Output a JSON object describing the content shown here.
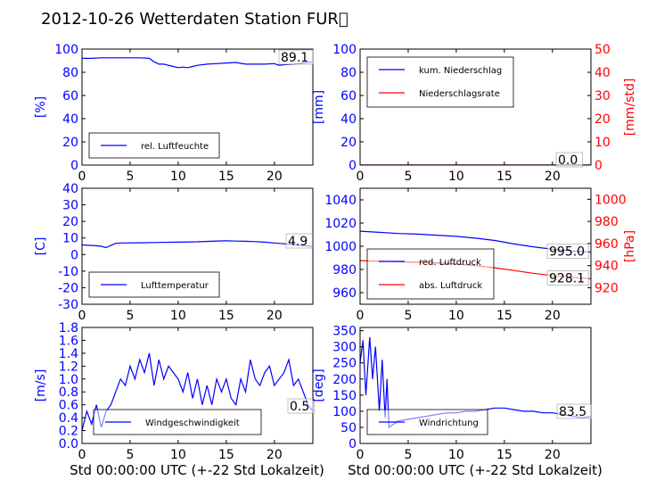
{
  "title": "2012-10-26 Wetterdaten Station FUR\u0000",
  "colors": {
    "blue": "#0000ff",
    "red": "#ff0000",
    "lightblue": "#8888ff"
  },
  "xlabel": "Std 00:00:00 UTC (+-22 Std Lokalzeit)",
  "chart_data": [
    {
      "id": "humidity",
      "type": "line",
      "xlim": [
        0,
        24
      ],
      "ylim": [
        0,
        100
      ],
      "xticks": [
        0,
        5,
        10,
        15,
        20
      ],
      "yticks": [
        0,
        20,
        40,
        60,
        80,
        100
      ],
      "ylabel": "[%]",
      "legend_loc": "lower-left",
      "value_label": "89.1",
      "series": [
        {
          "name": "rel. Luftfeuchte",
          "color": "#0000ff",
          "x": [
            0,
            1,
            2,
            3,
            4,
            5,
            6,
            7,
            7.5,
            8,
            8.5,
            9,
            9.5,
            10,
            10.5,
            11,
            11.5,
            12,
            13,
            14,
            15,
            16,
            17,
            18,
            19,
            20,
            20.5,
            21,
            22,
            23,
            24
          ],
          "y": [
            92,
            92,
            92.5,
            92.5,
            92.5,
            92.5,
            92.5,
            92,
            89,
            87,
            87,
            86,
            85,
            84,
            84.5,
            84,
            85,
            86,
            87,
            87.5,
            88,
            88.5,
            87,
            87,
            87,
            87.5,
            86,
            86.5,
            87,
            88,
            89
          ]
        }
      ]
    },
    {
      "id": "precip",
      "type": "line",
      "xlim": [
        0,
        24
      ],
      "ylim": [
        0,
        100
      ],
      "ylim_right": [
        0,
        50
      ],
      "xticks": [
        0,
        5,
        10,
        15,
        20
      ],
      "yticks": [
        0,
        20,
        40,
        60,
        80,
        100
      ],
      "yticks_right": [
        0,
        10,
        20,
        30,
        40,
        50
      ],
      "ylabel": "[mm]",
      "ylabel_right": "[mm/std]",
      "legend_loc": "upper-left",
      "value_label": "0.0",
      "series": [
        {
          "name": "kum. Niederschlag",
          "color": "#0000ff",
          "axis": "left",
          "x": [
            0,
            24
          ],
          "y": [
            0,
            0
          ]
        },
        {
          "name": "Niederschlagsrate",
          "color": "#ff0000",
          "axis": "right",
          "x": [
            0,
            24
          ],
          "y": [
            0,
            0
          ]
        }
      ]
    },
    {
      "id": "temperature",
      "type": "line",
      "xlim": [
        0,
        24
      ],
      "ylim": [
        -30,
        40
      ],
      "xticks": [
        0,
        5,
        10,
        15,
        20
      ],
      "yticks": [
        -30,
        -20,
        -10,
        0,
        10,
        20,
        30,
        40
      ],
      "ylabel": "[C]",
      "legend_loc": "lower-left",
      "value_label": "4.9",
      "series": [
        {
          "name": "Lufttemperatur",
          "color": "#0000ff",
          "x": [
            0,
            1,
            1.5,
            2,
            2.5,
            3,
            3.5,
            4,
            6,
            8,
            10,
            12,
            14,
            15,
            16,
            17,
            18,
            19,
            20,
            21,
            22,
            23,
            24
          ],
          "y": [
            5.8,
            5.5,
            5.3,
            5,
            4.2,
            5.5,
            6.8,
            7,
            7.1,
            7.3,
            7.5,
            7.7,
            8.2,
            8.3,
            8.1,
            8,
            7.8,
            7.5,
            7,
            6.5,
            6,
            5.5,
            4.9
          ]
        }
      ]
    },
    {
      "id": "pressure",
      "type": "line",
      "xlim": [
        0,
        24
      ],
      "ylim": [
        950,
        1050
      ],
      "ylim_right": [
        905,
        1010
      ],
      "xticks": [
        0,
        5,
        10,
        15,
        20
      ],
      "yticks": [
        960,
        980,
        1000,
        1020,
        1040
      ],
      "yticks_right": [
        920,
        940,
        960,
        980,
        1000
      ],
      "ylabel_right": "[hPa]",
      "legend_loc": "lower-left",
      "value_labels": [
        "995.0",
        "928.1"
      ],
      "series": [
        {
          "name": "red. Luftdruck",
          "color": "#0000ff",
          "axis": "left",
          "x": [
            0,
            2,
            4,
            6,
            8,
            10,
            12,
            14,
            16,
            18,
            20,
            22,
            24
          ],
          "y": [
            1013,
            1012,
            1011,
            1010.5,
            1009.5,
            1008.5,
            1007,
            1005,
            1002,
            999.5,
            997.5,
            996,
            995
          ]
        },
        {
          "name": "abs. Luftdruck",
          "color": "#ff0000",
          "axis": "right",
          "x": [
            0,
            2,
            4,
            6,
            8,
            10,
            12,
            14,
            16,
            18,
            20,
            22,
            24
          ],
          "y": [
            944.5,
            944,
            943.5,
            943,
            942.5,
            941.5,
            940,
            938,
            935.5,
            933,
            931,
            929.5,
            928.1
          ]
        }
      ]
    },
    {
      "id": "wind_speed",
      "type": "line",
      "xlim": [
        0,
        24
      ],
      "ylim": [
        0,
        1.8
      ],
      "xticks": [
        0,
        5,
        10,
        15,
        20
      ],
      "yticks": [
        0.0,
        0.2,
        0.4,
        0.6,
        0.8,
        1.0,
        1.2,
        1.4,
        1.6,
        1.8
      ],
      "ylabel": "[m/s]",
      "legend_loc": "lower-center",
      "value_label": "0.5",
      "series": [
        {
          "name": "Windgeschwindigkeit",
          "color": "#0000ff",
          "x": [
            0,
            0.5,
            1,
            1.5,
            2,
            2.5,
            3,
            3.5,
            4,
            4.5,
            5,
            5.5,
            6,
            6.5,
            7,
            7.5,
            8,
            8.5,
            9,
            9.5,
            10,
            10.5,
            11,
            11.5,
            12,
            12.5,
            13,
            13.5,
            14,
            14.5,
            15,
            15.5,
            16,
            16.5,
            17,
            17.5,
            18,
            18.5,
            19,
            19.5,
            20,
            20.5,
            21,
            21.5,
            22,
            22.5,
            23,
            23.5,
            24
          ],
          "y": [
            0.2,
            0.5,
            0.3,
            0.6,
            0.25,
            0.5,
            0.6,
            0.8,
            1.0,
            0.9,
            1.2,
            1.0,
            1.3,
            1.1,
            1.4,
            0.9,
            1.3,
            1.0,
            1.2,
            1.1,
            1.0,
            0.8,
            1.1,
            0.7,
            1.0,
            0.6,
            0.9,
            0.6,
            1.0,
            0.8,
            1.0,
            0.7,
            0.6,
            1.0,
            0.8,
            1.3,
            1.0,
            0.9,
            1.1,
            1.2,
            0.9,
            1.0,
            1.1,
            1.3,
            0.9,
            1.0,
            0.8,
            0.6,
            0.5
          ]
        }
      ]
    },
    {
      "id": "wind_direction",
      "type": "line",
      "xlim": [
        0,
        24
      ],
      "ylim": [
        0,
        360
      ],
      "xticks": [
        0,
        5,
        10,
        15,
        20
      ],
      "yticks": [
        0,
        50,
        100,
        150,
        200,
        250,
        300,
        350
      ],
      "ylabel": "[deg]",
      "legend_loc": "lower-left",
      "value_label": "83.5",
      "series": [
        {
          "name": "Windrichtung",
          "color": "#0000ff",
          "x": [
            0,
            0.3,
            0.6,
            1,
            1.3,
            1.6,
            2,
            2.3,
            2.6,
            2.8,
            3,
            3.5,
            4,
            5,
            6,
            7,
            8,
            9,
            10,
            11,
            12,
            13,
            14,
            15,
            16,
            17,
            18,
            19,
            20,
            21,
            22,
            23,
            24
          ],
          "y": [
            250,
            320,
            150,
            330,
            200,
            300,
            100,
            260,
            80,
            200,
            50,
            60,
            70,
            75,
            80,
            85,
            90,
            95,
            95,
            100,
            100,
            105,
            110,
            110,
            105,
            100,
            100,
            95,
            95,
            90,
            85,
            80,
            83
          ]
        }
      ]
    }
  ]
}
